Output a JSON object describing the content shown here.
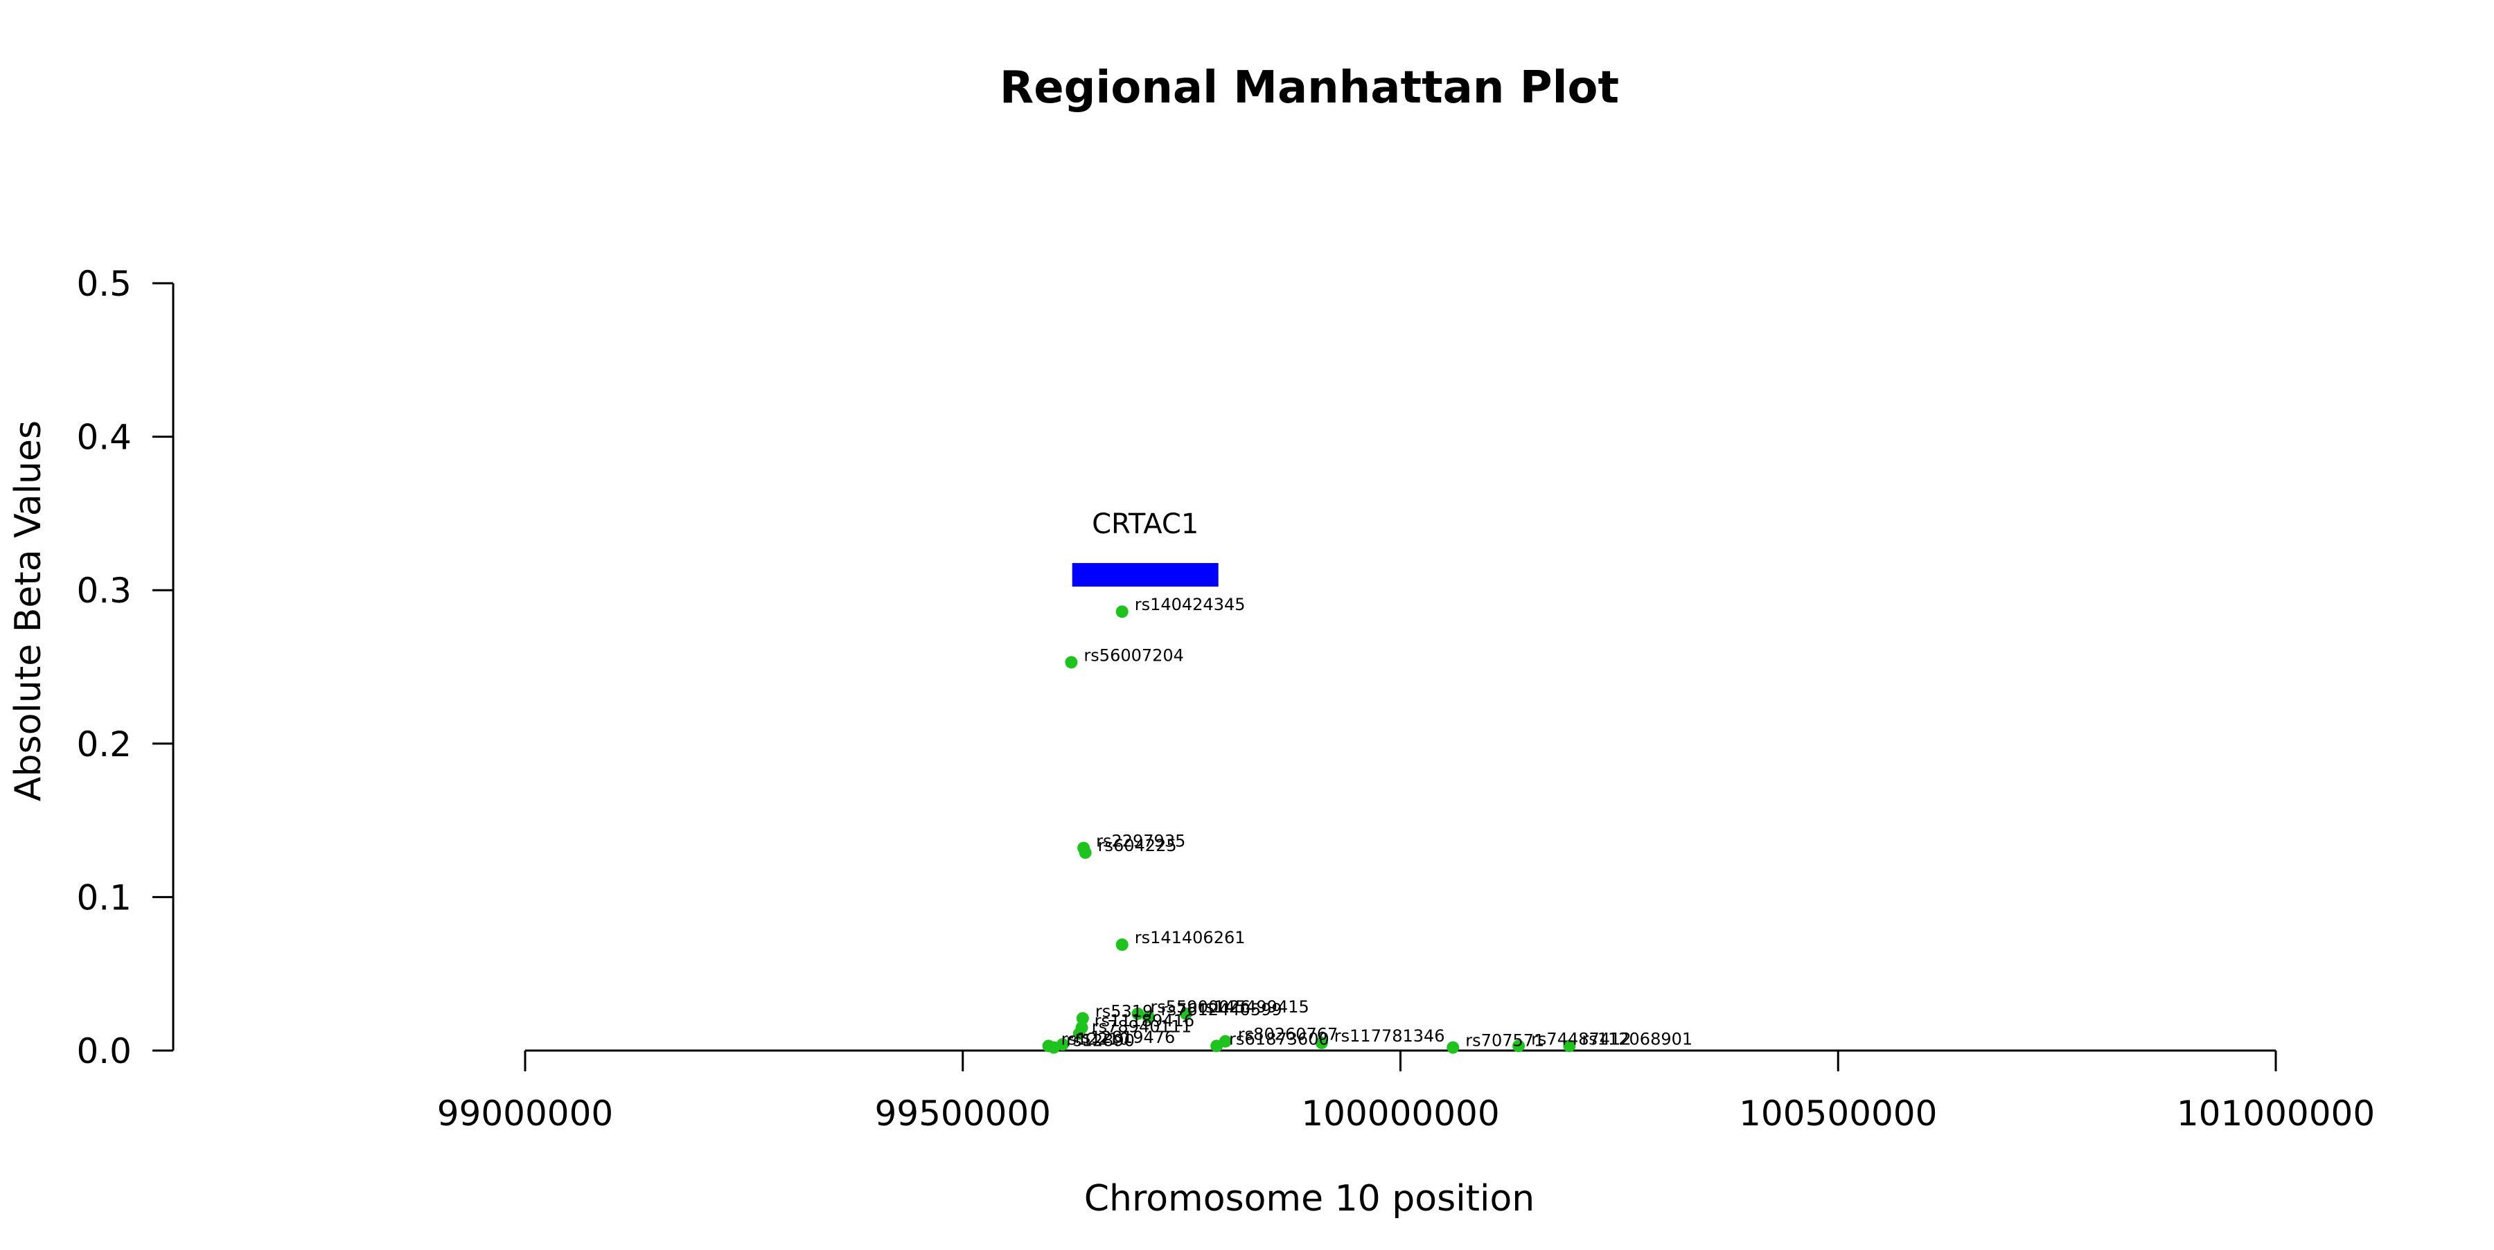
{
  "chart_data": {
    "type": "scatter",
    "title": "Regional Manhattan Plot",
    "xlabel": "Chromosome 10 position",
    "ylabel": "Absolute Beta Values",
    "xlim": [
      99000000,
      101000000
    ],
    "ylim": [
      0,
      0.5
    ],
    "xticks": [
      99000000,
      99500000,
      100000000,
      100500000,
      101000000
    ],
    "xtick_labels": [
      "99000000",
      "99500000",
      "100000000",
      "100500000",
      "101000000"
    ],
    "yticks": [
      0,
      0.1,
      0.2,
      0.3,
      0.4,
      0.5
    ],
    "ytick_labels": [
      "0.0",
      "0.1",
      "0.2",
      "0.3",
      "0.4",
      "0.5"
    ],
    "grid": false,
    "point_color": "#1ec31e",
    "gene": {
      "name": "CRTAC1",
      "start": 99625000,
      "end": 99792000,
      "y": 0.31,
      "color": "#0000ff"
    },
    "points": [
      {
        "label": "rs140424345",
        "x": 99682000,
        "y": 0.286
      },
      {
        "label": "rs56007204",
        "x": 99624000,
        "y": 0.253
      },
      {
        "label": "rs2297935",
        "x": 99638000,
        "y": 0.132
      },
      {
        "label": "rs604225",
        "x": 99640000,
        "y": 0.129
      },
      {
        "label": "rs141406261",
        "x": 99682000,
        "y": 0.069
      },
      {
        "label": "rs55900026",
        "x": 99700000,
        "y": 0.024
      },
      {
        "label": "rs145499415",
        "x": 99755000,
        "y": 0.024
      },
      {
        "label": "rs7612440599",
        "x": 99712000,
        "y": 0.022
      },
      {
        "label": "rs5319",
        "x": 99637000,
        "y": 0.021
      },
      {
        "label": "rs11189416",
        "x": 99636000,
        "y": 0.015
      },
      {
        "label": "rs78940111",
        "x": 99633000,
        "y": 0.011
      },
      {
        "label": "rs80260767",
        "x": 99800000,
        "y": 0.006
      },
      {
        "label": "rs117781346",
        "x": 99910000,
        "y": 0.005
      },
      {
        "label": "rs61873600",
        "x": 99790000,
        "y": 0.003
      },
      {
        "label": "rs12819476",
        "x": 99614000,
        "y": 0.004
      },
      {
        "label": "rs12210",
        "x": 99598000,
        "y": 0.003
      },
      {
        "label": "rs12890",
        "x": 99604000,
        "y": 0.002
      },
      {
        "label": "rs707571",
        "x": 100060000,
        "y": 0.002
      },
      {
        "label": "rs74487412",
        "x": 100135000,
        "y": 0.003
      },
      {
        "label": "rs112068901",
        "x": 100193000,
        "y": 0.003
      }
    ]
  }
}
